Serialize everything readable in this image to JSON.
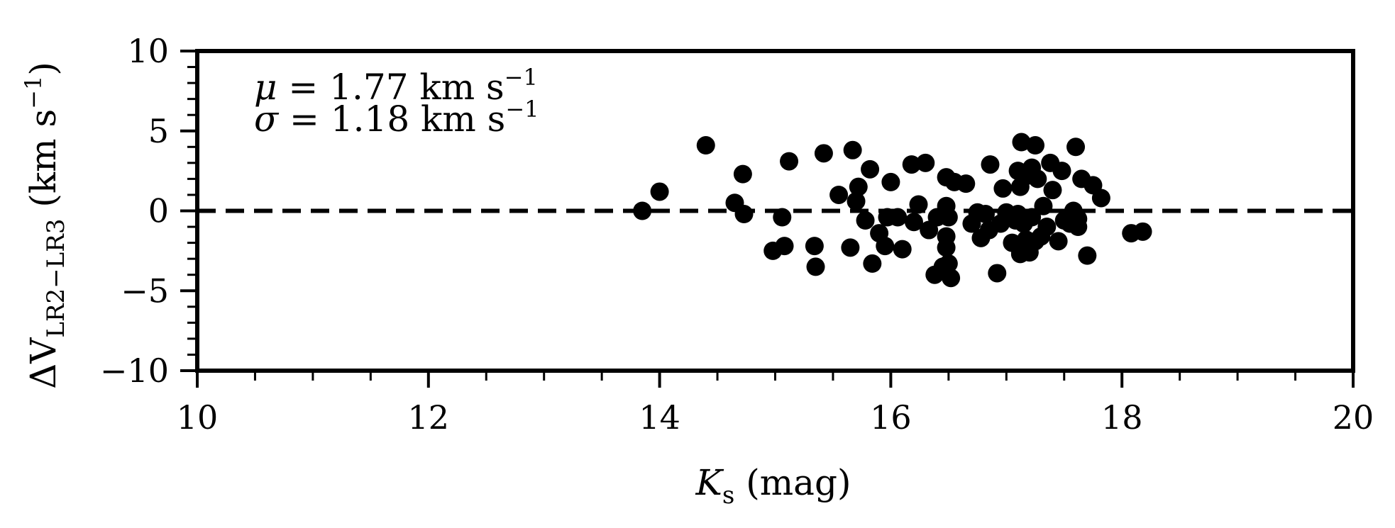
{
  "chart_data": {
    "type": "scatter",
    "xlabel": {
      "main": "K",
      "sub": "s",
      "rest": " (mag)"
    },
    "ylabel": {
      "main": "ΔV",
      "sub": "LR2−LR3",
      "rest": " (km s",
      "sup": "−1",
      "close": ")"
    },
    "xlim": [
      10,
      20
    ],
    "ylim": [
      -10,
      10
    ],
    "xticks": [
      10,
      12,
      14,
      16,
      18,
      20
    ],
    "yticks": [
      10,
      5,
      0,
      -5,
      -10
    ],
    "xtick_labels": [
      "10",
      "12",
      "14",
      "16",
      "18",
      "20"
    ],
    "ytick_labels": [
      "10",
      "5",
      "0",
      "−5",
      "−10"
    ],
    "reference_line": {
      "y": 0,
      "style": "dashed"
    },
    "grid": false,
    "marker_color": "#000000",
    "annotations": [
      {
        "sym": "μ",
        "text": " = 1.77 km s",
        "sup": "−1"
      },
      {
        "sym": "σ",
        "text": " = 1.18 km s",
        "sup": "−1"
      }
    ],
    "points": [
      [
        13.85,
        0.0
      ],
      [
        14.0,
        1.2
      ],
      [
        14.4,
        4.1
      ],
      [
        14.65,
        0.5
      ],
      [
        14.72,
        2.3
      ],
      [
        14.73,
        -0.2
      ],
      [
        14.98,
        -2.5
      ],
      [
        15.06,
        -0.4
      ],
      [
        15.08,
        -2.2
      ],
      [
        15.12,
        3.1
      ],
      [
        15.34,
        -2.2
      ],
      [
        15.35,
        -3.5
      ],
      [
        15.42,
        3.6
      ],
      [
        15.55,
        1.0
      ],
      [
        15.65,
        -2.3
      ],
      [
        15.67,
        3.8
      ],
      [
        15.7,
        0.6
      ],
      [
        15.72,
        1.5
      ],
      [
        15.78,
        -0.6
      ],
      [
        15.82,
        2.6
      ],
      [
        15.84,
        -3.3
      ],
      [
        15.9,
        -1.4
      ],
      [
        15.95,
        -2.2
      ],
      [
        15.97,
        -0.4
      ],
      [
        16.0,
        1.8
      ],
      [
        16.06,
        -0.4
      ],
      [
        16.1,
        -2.4
      ],
      [
        16.18,
        2.9
      ],
      [
        16.2,
        -0.7
      ],
      [
        16.24,
        0.4
      ],
      [
        16.3,
        3.0
      ],
      [
        16.33,
        -1.2
      ],
      [
        16.38,
        -4.0
      ],
      [
        16.4,
        -0.4
      ],
      [
        16.45,
        -3.5
      ],
      [
        16.48,
        0.3
      ],
      [
        16.48,
        2.1
      ],
      [
        16.48,
        -1.6
      ],
      [
        16.48,
        -2.3
      ],
      [
        16.5,
        -3.3
      ],
      [
        16.5,
        -0.4
      ],
      [
        16.52,
        -4.2
      ],
      [
        16.55,
        1.8
      ],
      [
        16.65,
        1.7
      ],
      [
        16.7,
        -0.8
      ],
      [
        16.75,
        -0.1
      ],
      [
        16.78,
        -1.7
      ],
      [
        16.82,
        -0.2
      ],
      [
        16.85,
        -1.2
      ],
      [
        16.86,
        2.9
      ],
      [
        16.92,
        -3.9
      ],
      [
        16.95,
        -0.8
      ],
      [
        16.97,
        1.4
      ],
      [
        17.0,
        -0.1
      ],
      [
        17.05,
        -2.0
      ],
      [
        17.08,
        -0.6
      ],
      [
        17.1,
        -0.2
      ],
      [
        17.1,
        2.5
      ],
      [
        17.12,
        -2.7
      ],
      [
        17.12,
        1.5
      ],
      [
        17.13,
        4.3
      ],
      [
        17.15,
        -0.8
      ],
      [
        17.17,
        -1.8
      ],
      [
        17.18,
        2.2
      ],
      [
        17.2,
        -2.6
      ],
      [
        17.22,
        -0.4
      ],
      [
        17.22,
        2.7
      ],
      [
        17.25,
        4.1
      ],
      [
        17.25,
        -1.9
      ],
      [
        17.27,
        2.0
      ],
      [
        17.3,
        -1.6
      ],
      [
        17.32,
        0.3
      ],
      [
        17.35,
        -1.0
      ],
      [
        17.38,
        3.0
      ],
      [
        17.4,
        1.3
      ],
      [
        17.45,
        -1.9
      ],
      [
        17.48,
        2.5
      ],
      [
        17.5,
        -0.6
      ],
      [
        17.55,
        -0.8
      ],
      [
        17.58,
        0.0
      ],
      [
        17.6,
        4.0
      ],
      [
        17.62,
        -1.0
      ],
      [
        17.62,
        -0.5
      ],
      [
        17.65,
        2.0
      ],
      [
        17.7,
        -2.8
      ],
      [
        17.75,
        1.6
      ],
      [
        17.82,
        0.8
      ],
      [
        18.08,
        -1.4
      ],
      [
        18.18,
        -1.3
      ]
    ]
  }
}
